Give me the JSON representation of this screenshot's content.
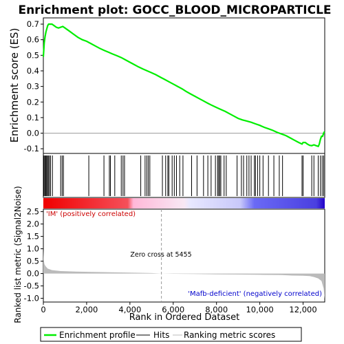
{
  "chart_data": {
    "type": "line",
    "title": "Enrichment plot: GOCC_BLOOD_MICROPARTICLE",
    "top_panel": {
      "ylabel": "Enrichment score (ES)",
      "ylim": [
        -0.13,
        0.74
      ],
      "yticks": [
        -0.1,
        0.0,
        0.1,
        0.2,
        0.3,
        0.4,
        0.5,
        0.6,
        0.7
      ],
      "ytick_labels": [
        "-0.1",
        "0.0",
        "0.1",
        "0.2",
        "0.3",
        "0.4",
        "0.5",
        "0.6",
        "0.7"
      ],
      "series": [
        {
          "name": "Enrichment profile",
          "color": "#00ee00",
          "x": [
            0,
            40,
            80,
            120,
            160,
            200,
            240,
            300,
            400,
            500,
            600,
            700,
            800,
            900,
            1000,
            1200,
            1400,
            1600,
            1800,
            2000,
            2200,
            2400,
            2600,
            2800,
            3000,
            3200,
            3400,
            3600,
            3800,
            4000,
            4200,
            4400,
            4600,
            4800,
            5000,
            5200,
            5455,
            5600,
            5800,
            6000,
            6200,
            6400,
            6600,
            6800,
            7000,
            7200,
            7400,
            7600,
            7800,
            8000,
            8200,
            8400,
            8600,
            8800,
            9000,
            9200,
            9400,
            9600,
            9800,
            10000,
            10200,
            10400,
            10600,
            10800,
            11000,
            11200,
            11400,
            11600,
            11800,
            11950,
            12000,
            12100,
            12200,
            12300,
            12400,
            12500,
            12600,
            12700,
            12750,
            12800,
            12850,
            12900,
            12950,
            12990
          ],
          "y": [
            0.49,
            0.58,
            0.62,
            0.65,
            0.67,
            0.69,
            0.7,
            0.7,
            0.7,
            0.69,
            0.68,
            0.675,
            0.68,
            0.685,
            0.675,
            0.655,
            0.635,
            0.615,
            0.6,
            0.59,
            0.575,
            0.56,
            0.545,
            0.532,
            0.52,
            0.508,
            0.497,
            0.485,
            0.47,
            0.455,
            0.44,
            0.425,
            0.412,
            0.4,
            0.388,
            0.375,
            0.356,
            0.345,
            0.33,
            0.315,
            0.3,
            0.285,
            0.268,
            0.252,
            0.237,
            0.222,
            0.207,
            0.192,
            0.178,
            0.165,
            0.152,
            0.14,
            0.125,
            0.11,
            0.095,
            0.085,
            0.078,
            0.07,
            0.06,
            0.05,
            0.038,
            0.028,
            0.018,
            0.005,
            -0.005,
            -0.015,
            -0.03,
            -0.045,
            -0.06,
            -0.07,
            -0.06,
            -0.06,
            -0.07,
            -0.078,
            -0.08,
            -0.075,
            -0.08,
            -0.085,
            -0.07,
            -0.04,
            -0.02,
            -0.02,
            0.0,
            0.01
          ]
        }
      ]
    },
    "hits": [
      30,
      70,
      110,
      150,
      190,
      230,
      280,
      330,
      420,
      800,
      870,
      930,
      2100,
      2800,
      3050,
      3100,
      3300,
      3600,
      3680,
      3750,
      4500,
      4700,
      4780,
      4850,
      4920,
      5500,
      5650,
      5750,
      5800,
      5950,
      6050,
      6150,
      6300,
      6450,
      6850,
      7100,
      7400,
      7600,
      7750,
      7950,
      8050,
      8100,
      8150,
      8200,
      8350,
      8450,
      8950,
      9150,
      9250,
      9400,
      9500,
      9600,
      9750,
      9800,
      9900,
      10000,
      10150,
      10400,
      10650,
      10900,
      11050,
      11950,
      12000,
      12400,
      12500,
      12700,
      12800,
      12880,
      12950
    ],
    "bottom_panel": {
      "ylabel": "Ranked list metric (Signal2Noise)",
      "xlabel": "Rank in Ordered Dataset",
      "xlim": [
        0,
        13000
      ],
      "ylim": [
        -1.15,
        2.6
      ],
      "xticks": [
        0,
        2000,
        4000,
        6000,
        8000,
        10000,
        12000
      ],
      "xtick_labels": [
        "0",
        "2,000",
        "4,000",
        "6,000",
        "8,000",
        "10,000",
        "12,000"
      ],
      "yticks": [
        -1.0,
        -0.5,
        0.0,
        0.5,
        1.0,
        1.5,
        2.0,
        2.5
      ],
      "ytick_labels": [
        "-1.0",
        "-0.5",
        "0.0",
        "0.5",
        "1.0",
        "1.5",
        "2.0",
        "2.5"
      ],
      "metric": {
        "x": [
          0,
          20,
          50,
          100,
          200,
          400,
          800,
          1500,
          2500,
          4000,
          5000,
          5455,
          6000,
          7000,
          8000,
          9000,
          10000,
          11000,
          11500,
          12000,
          12300,
          12500,
          12700,
          12850,
          12950,
          13000
        ],
        "y": [
          0.95,
          0.55,
          0.38,
          0.3,
          0.2,
          0.14,
          0.1,
          0.08,
          0.06,
          0.04,
          0.02,
          0.0,
          -0.01,
          -0.02,
          -0.03,
          -0.04,
          -0.05,
          -0.06,
          -0.08,
          -0.09,
          -0.1,
          -0.14,
          -0.2,
          -0.3,
          -0.6,
          -1.02
        ]
      },
      "zero_cross_label": "Zero cross at 5455",
      "zero_cross_rank": 5455,
      "pos_label": "'IM' (positively correlated)",
      "neg_label": "'Mafb-deficient' (negatively correlated)"
    },
    "legend": {
      "position": "bottom",
      "entries": [
        {
          "label": "Enrichment profile",
          "color": "#00ee00"
        },
        {
          "label": "Hits",
          "color": "#000000"
        },
        {
          "label": "Ranking metric scores",
          "color": "#bbbbbb"
        }
      ]
    },
    "colors": {
      "profile": "#00ee00",
      "metric_fill": "#bbbbbb",
      "pos_label": "#cc0000",
      "neg_label": "#0000cc",
      "zero_line": "#999999"
    }
  }
}
